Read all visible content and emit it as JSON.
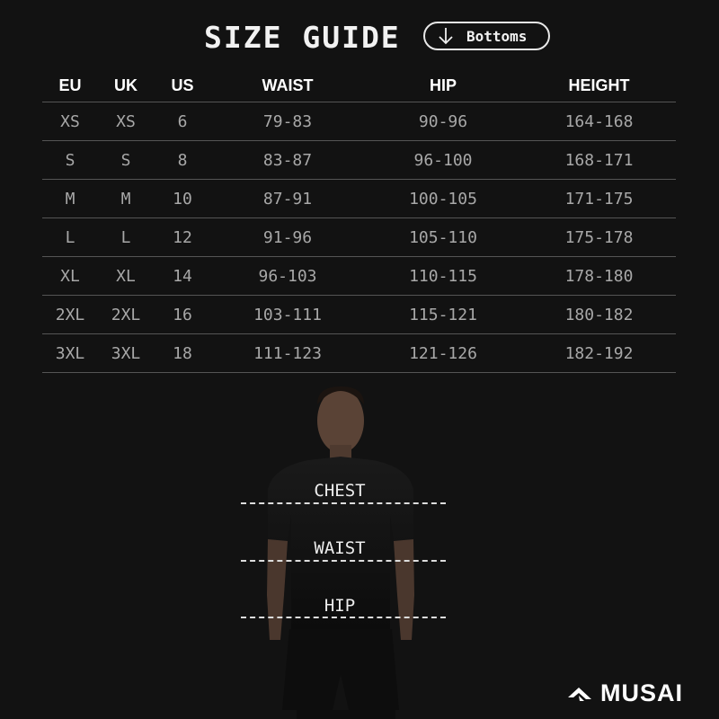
{
  "header": {
    "title": "SIZE GUIDE",
    "category_button": "Bottoms",
    "category_icon": "arrow-down-icon"
  },
  "table": {
    "columns": [
      "EU",
      "UK",
      "US",
      "WAIST",
      "HIP",
      "HEIGHT"
    ],
    "rows": [
      [
        "XS",
        "XS",
        "6",
        "79-83",
        "90-96",
        "164-168"
      ],
      [
        "S",
        "S",
        "8",
        "83-87",
        "96-100",
        "168-171"
      ],
      [
        "M",
        "M",
        "10",
        "87-91",
        "100-105",
        "171-175"
      ],
      [
        "L",
        "L",
        "12",
        "91-96",
        "105-110",
        "175-178"
      ],
      [
        "XL",
        "XL",
        "14",
        "96-103",
        "110-115",
        "178-180"
      ],
      [
        "2XL",
        "2XL",
        "16",
        "103-111",
        "115-121",
        "180-182"
      ],
      [
        "3XL",
        "3XL",
        "18",
        "111-123",
        "121-126",
        "182-192"
      ]
    ]
  },
  "measurements": {
    "chest": "CHEST",
    "waist": "WAIST",
    "hip": "HIP"
  },
  "brand": {
    "name": "MUSAI"
  }
}
